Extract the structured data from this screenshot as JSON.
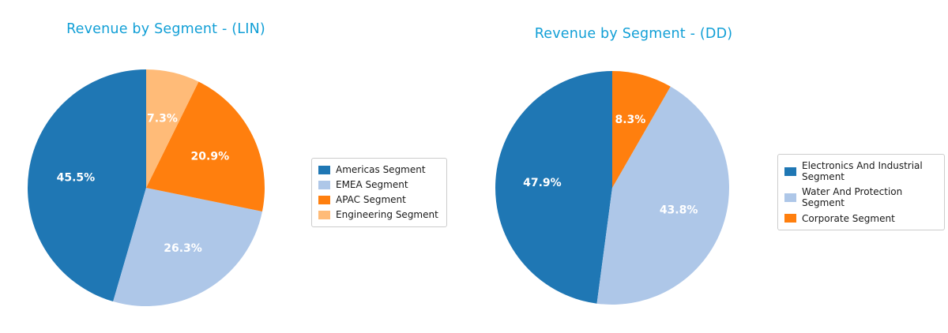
{
  "page": {
    "background": "#ffffff"
  },
  "styles": {
    "title_color": "#119fd6",
    "legend_border_color": "#cccccc",
    "legend_text_color": "#1a1a1a",
    "pct_label_color": "#ffffff"
  },
  "chart_data": [
    {
      "type": "pie",
      "title": "Revenue by Segment - (LIN)",
      "categories": [
        "Americas Segment",
        "EMEA Segment",
        "APAC Segment",
        "Engineering Segment"
      ],
      "values": [
        45.5,
        26.3,
        20.9,
        7.3
      ],
      "value_labels": [
        "45.5%",
        "26.3%",
        "20.9%",
        "7.3%"
      ],
      "colors": [
        "#1f77b4",
        "#aec7e8",
        "#ff7f0e",
        "#ffbb78"
      ],
      "start_angle_deg": 90,
      "direction": "counterclockwise",
      "legend_position": "right",
      "pct_label_distance": 0.6
    },
    {
      "type": "pie",
      "title": "Revenue by Segment - (DD)",
      "categories": [
        "Electronics And Industrial Segment",
        "Water And Protection Segment",
        "Corporate Segment"
      ],
      "values": [
        47.9,
        43.8,
        8.3
      ],
      "value_labels": [
        "47.9%",
        "43.8%",
        "8.3%"
      ],
      "colors": [
        "#1f77b4",
        "#aec7e8",
        "#ff7f0e"
      ],
      "start_angle_deg": 90,
      "direction": "counterclockwise",
      "legend_position": "right",
      "pct_label_distance": 0.6
    }
  ]
}
